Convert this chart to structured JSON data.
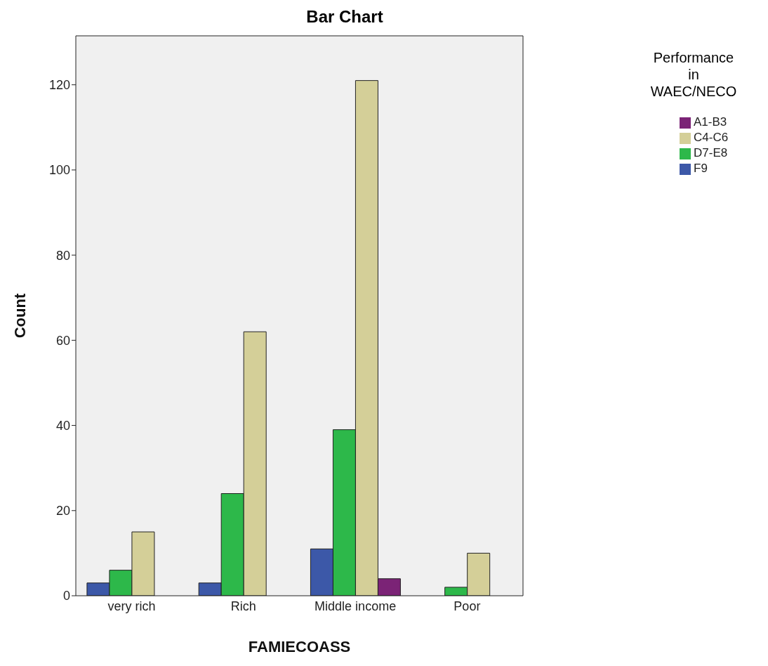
{
  "chart_data": {
    "type": "bar",
    "title": "Bar Chart",
    "xlabel": "FAMIECOASS",
    "ylabel": "Count",
    "legend_title": "Performance in WAEC/NECO",
    "categories": [
      "very rich",
      "Rich",
      "Middle income",
      "Poor"
    ],
    "series": [
      {
        "name": "F9",
        "color": "#3c58a8",
        "values": [
          3,
          3,
          11,
          0
        ]
      },
      {
        "name": "D7-E8",
        "color": "#2db84a",
        "values": [
          6,
          24,
          39,
          2
        ]
      },
      {
        "name": "C4-C6",
        "color": "#d4cf98",
        "values": [
          15,
          62,
          121,
          10
        ]
      },
      {
        "name": "A1-B3",
        "color": "#7b2376",
        "values": [
          0,
          0,
          4,
          0
        ]
      }
    ],
    "ylim": [
      0,
      131.5
    ],
    "yticks": [
      0,
      20,
      40,
      60,
      80,
      100,
      120
    ],
    "legend": "top right"
  }
}
